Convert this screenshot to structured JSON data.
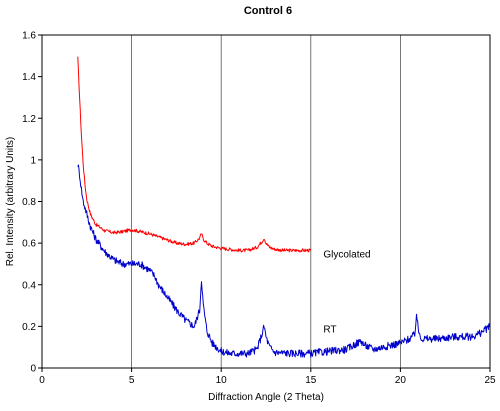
{
  "chart_data": {
    "type": "line",
    "title": "Control 6",
    "xlabel": "Diffraction Angle (2 Theta)",
    "ylabel": "Rel. Intensity (arbitrary Units)",
    "xlim": [
      0,
      25
    ],
    "ylim": [
      0,
      1.6
    ],
    "x_ticks": [
      0,
      5,
      10,
      15,
      20,
      25
    ],
    "y_ticks": [
      0,
      0.2,
      0.4,
      0.6,
      0.8,
      1,
      1.2,
      1.4,
      1.6
    ],
    "grid": "vertical",
    "series": [
      {
        "name": "Glycolated",
        "color": "#ff0000",
        "label_at": [
          15.7,
          0.55
        ],
        "x": [
          2.0,
          2.1,
          2.2,
          2.3,
          2.4,
          2.5,
          2.7,
          3.0,
          3.5,
          4.0,
          4.5,
          5.0,
          5.5,
          6.0,
          6.5,
          7.0,
          7.5,
          8.0,
          8.5,
          8.8,
          8.9,
          9.0,
          9.2,
          9.5,
          10.0,
          10.5,
          11.0,
          11.5,
          12.0,
          12.3,
          12.4,
          12.5,
          12.7,
          13.0,
          13.5,
          14.0,
          14.5,
          15.0
        ],
        "values": [
          1.49,
          1.3,
          1.12,
          0.98,
          0.88,
          0.81,
          0.74,
          0.69,
          0.66,
          0.65,
          0.655,
          0.665,
          0.655,
          0.645,
          0.63,
          0.615,
          0.6,
          0.595,
          0.6,
          0.625,
          0.645,
          0.62,
          0.6,
          0.585,
          0.575,
          0.57,
          0.565,
          0.565,
          0.58,
          0.61,
          0.625,
          0.6,
          0.58,
          0.57,
          0.565,
          0.565,
          0.565,
          0.565
        ]
      },
      {
        "name": "RT",
        "color": "#0000cc",
        "label_at": [
          15.7,
          0.19
        ],
        "x": [
          2.0,
          2.1,
          2.2,
          2.3,
          2.5,
          2.7,
          3.0,
          3.5,
          4.0,
          4.5,
          5.0,
          5.5,
          6.0,
          6.3,
          6.5,
          7.0,
          7.5,
          8.0,
          8.5,
          8.8,
          8.9,
          9.0,
          9.2,
          9.5,
          10.0,
          10.5,
          11.0,
          11.5,
          12.0,
          12.3,
          12.4,
          12.5,
          12.7,
          13.0,
          14.0,
          15.0,
          16.0,
          17.0,
          17.8,
          18.0,
          18.5,
          19.0,
          20.0,
          20.5,
          20.8,
          20.9,
          21.0,
          21.2,
          22.0,
          23.0,
          24.0,
          24.5,
          25.0
        ],
        "values": [
          0.98,
          0.93,
          0.86,
          0.8,
          0.74,
          0.68,
          0.62,
          0.56,
          0.52,
          0.5,
          0.5,
          0.5,
          0.47,
          0.44,
          0.4,
          0.34,
          0.28,
          0.23,
          0.2,
          0.28,
          0.43,
          0.3,
          0.18,
          0.12,
          0.08,
          0.07,
          0.07,
          0.07,
          0.09,
          0.17,
          0.2,
          0.15,
          0.1,
          0.075,
          0.07,
          0.07,
          0.08,
          0.09,
          0.13,
          0.11,
          0.09,
          0.1,
          0.12,
          0.14,
          0.16,
          0.26,
          0.18,
          0.14,
          0.14,
          0.15,
          0.15,
          0.17,
          0.2
        ]
      }
    ]
  }
}
